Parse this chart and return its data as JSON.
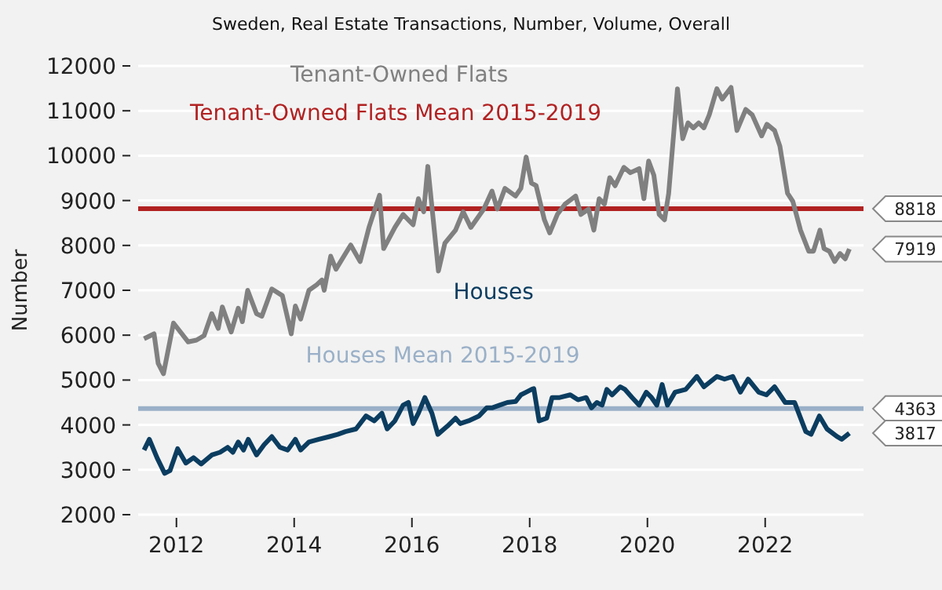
{
  "chart_data": {
    "type": "line",
    "title": "Sweden, Real Estate Transactions, Number, Volume, Overall",
    "ylabel": "Number",
    "xlim": [
      2011.35,
      2023.67
    ],
    "xticks": [
      2012,
      2014,
      2016,
      2018,
      2020,
      2022
    ],
    "ylim": [
      2000,
      12000
    ],
    "yticks": [
      2000,
      3000,
      4000,
      5000,
      6000,
      7000,
      8000,
      9000,
      10000,
      11000,
      12000
    ],
    "grid": "y",
    "series": [
      {
        "name": "Tenant-Owned Flats",
        "color": "#808080",
        "x": [
          2011.45,
          2011.62,
          2011.69,
          2011.78,
          2011.95,
          2012.2,
          2012.34,
          2012.47,
          2012.6,
          2012.71,
          2012.78,
          2012.93,
          2013.05,
          2013.12,
          2013.21,
          2013.36,
          2013.45,
          2013.62,
          2013.8,
          2013.95,
          2014.02,
          2014.11,
          2014.25,
          2014.38,
          2014.47,
          2014.51,
          2014.62,
          2014.71,
          2014.96,
          2015.12,
          2015.27,
          2015.45,
          2015.52,
          2015.71,
          2015.85,
          2016.02,
          2016.11,
          2016.2,
          2016.27,
          2016.38,
          2016.45,
          2016.56,
          2016.74,
          2016.87,
          2017.0,
          2017.22,
          2017.36,
          2017.45,
          2017.58,
          2017.76,
          2017.85,
          2017.94,
          2018.03,
          2018.11,
          2018.25,
          2018.34,
          2018.47,
          2018.6,
          2018.78,
          2018.87,
          2019.0,
          2019.09,
          2019.18,
          2019.27,
          2019.36,
          2019.45,
          2019.6,
          2019.71,
          2019.86,
          2019.94,
          2020.02,
          2020.11,
          2020.2,
          2020.29,
          2020.36,
          2020.51,
          2020.6,
          2020.69,
          2020.78,
          2020.87,
          2020.96,
          2021.05,
          2021.18,
          2021.27,
          2021.42,
          2021.52,
          2021.67,
          2021.78,
          2021.94,
          2022.03,
          2022.16,
          2022.25,
          2022.38,
          2022.47,
          2022.6,
          2022.74,
          2022.82,
          2022.93,
          2023.0,
          2023.09,
          2023.18,
          2023.27,
          2023.36,
          2023.43
        ],
        "values": [
          5920,
          6030,
          5370,
          5140,
          6270,
          5850,
          5890,
          5990,
          6480,
          6150,
          6630,
          6070,
          6600,
          6300,
          7000,
          6480,
          6420,
          7030,
          6880,
          6030,
          6650,
          6360,
          7000,
          7120,
          7230,
          7000,
          7760,
          7470,
          8010,
          7640,
          8400,
          9120,
          7930,
          8400,
          8690,
          8460,
          9040,
          8750,
          9760,
          8340,
          7430,
          8050,
          8340,
          8750,
          8400,
          8810,
          9210,
          8810,
          9270,
          9100,
          9270,
          9970,
          9390,
          9330,
          8570,
          8280,
          8690,
          8920,
          9100,
          8690,
          8810,
          8340,
          9040,
          8920,
          9510,
          9330,
          9740,
          9620,
          9710,
          9040,
          9880,
          9560,
          8690,
          8570,
          9150,
          11490,
          10380,
          10730,
          10620,
          10730,
          10620,
          10910,
          11490,
          11260,
          11520,
          10560,
          11030,
          10910,
          10440,
          10700,
          10560,
          10210,
          9160,
          8980,
          8340,
          7870,
          7870,
          8340,
          7930,
          7870,
          7640,
          7820,
          7700,
          7919
        ]
      },
      {
        "name": "Houses",
        "color": "#0b3d60",
        "x": [
          2011.45,
          2011.54,
          2011.67,
          2011.8,
          2011.89,
          2012.02,
          2012.16,
          2012.29,
          2012.42,
          2012.6,
          2012.74,
          2012.87,
          2012.96,
          2013.05,
          2013.14,
          2013.22,
          2013.36,
          2013.49,
          2013.62,
          2013.76,
          2013.89,
          2014.02,
          2014.11,
          2014.25,
          2014.42,
          2014.6,
          2014.74,
          2014.87,
          2015.05,
          2015.22,
          2015.36,
          2015.49,
          2015.58,
          2015.71,
          2015.85,
          2015.94,
          2016.02,
          2016.11,
          2016.22,
          2016.34,
          2016.44,
          2016.6,
          2016.74,
          2016.82,
          2016.96,
          2017.14,
          2017.27,
          2017.36,
          2017.49,
          2017.62,
          2017.76,
          2017.85,
          2017.94,
          2018.03,
          2018.07,
          2018.16,
          2018.29,
          2018.38,
          2018.51,
          2018.69,
          2018.82,
          2018.96,
          2019.05,
          2019.14,
          2019.23,
          2019.31,
          2019.4,
          2019.54,
          2019.62,
          2019.74,
          2019.86,
          2019.98,
          2020.07,
          2020.16,
          2020.25,
          2020.34,
          2020.47,
          2020.65,
          2020.84,
          2020.96,
          2021.18,
          2021.31,
          2021.45,
          2021.58,
          2021.71,
          2021.89,
          2022.02,
          2022.16,
          2022.34,
          2022.5,
          2022.69,
          2022.78,
          2022.92,
          2023.05,
          2023.22,
          2023.3,
          2023.43
        ],
        "values": [
          3440,
          3680,
          3270,
          2920,
          2980,
          3470,
          3150,
          3270,
          3130,
          3330,
          3390,
          3500,
          3390,
          3620,
          3440,
          3680,
          3330,
          3560,
          3740,
          3500,
          3440,
          3680,
          3440,
          3620,
          3680,
          3740,
          3790,
          3850,
          3910,
          4200,
          4090,
          4260,
          3910,
          4090,
          4440,
          4500,
          4030,
          4260,
          4610,
          4260,
          3790,
          3970,
          4150,
          4030,
          4090,
          4200,
          4380,
          4380,
          4440,
          4500,
          4520,
          4670,
          4730,
          4790,
          4810,
          4090,
          4150,
          4610,
          4610,
          4670,
          4560,
          4610,
          4380,
          4500,
          4440,
          4790,
          4670,
          4850,
          4790,
          4610,
          4440,
          4730,
          4610,
          4440,
          4900,
          4440,
          4730,
          4790,
          5080,
          4850,
          5080,
          5020,
          5080,
          4730,
          5020,
          4730,
          4670,
          4850,
          4500,
          4500,
          3850,
          3790,
          4200,
          3910,
          3740,
          3680,
          3817
        ]
      }
    ],
    "ref_lines": [
      {
        "axis": "y",
        "value": 8818,
        "label": "Tenant-Owned Flats Mean 2015-2019",
        "color": "#b22222"
      },
      {
        "axis": "y",
        "value": 4363,
        "label": "Houses Mean 2015-2019",
        "color": "#9ab0c8"
      }
    ],
    "y2lim": [
      2000,
      12000
    ],
    "y2ticks": [
      8818,
      7919,
      4363,
      3817
    ]
  }
}
